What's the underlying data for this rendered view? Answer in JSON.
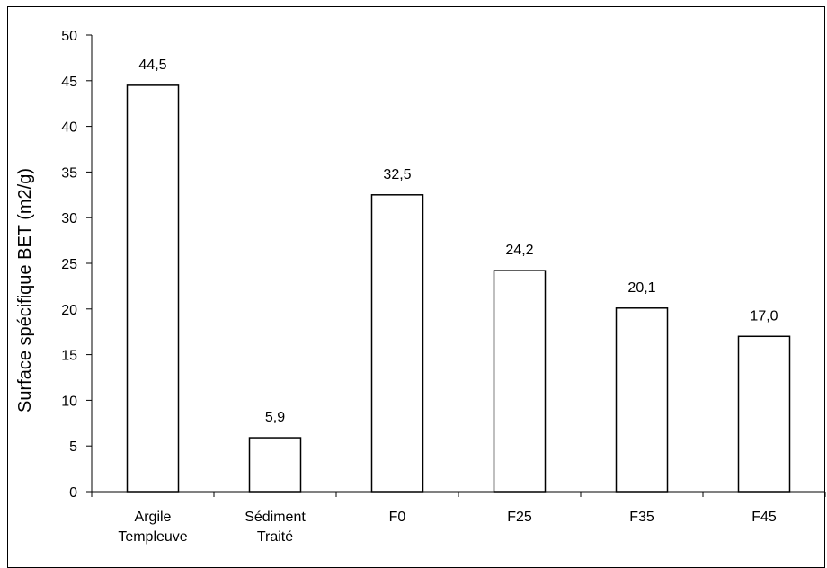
{
  "chart_data": {
    "type": "bar",
    "categories": [
      [
        "Argile",
        "Templeuve"
      ],
      [
        "Sédiment",
        "Traité"
      ],
      [
        "F0"
      ],
      [
        "F25"
      ],
      [
        "F35"
      ],
      [
        "F45"
      ]
    ],
    "values": [
      44.5,
      5.9,
      32.5,
      24.2,
      20.1,
      17.0
    ],
    "data_labels": [
      "44,5",
      "5,9",
      "32,5",
      "24,2",
      "20,1",
      "17,0"
    ],
    "title": "",
    "xlabel": "",
    "ylabel": "Surface spécifique BET (m2/g)",
    "ylim": [
      0,
      50
    ],
    "yticks": [
      0,
      5,
      10,
      15,
      20,
      25,
      30,
      35,
      40,
      45,
      50
    ],
    "grid": false,
    "legend": "none",
    "colors": {
      "bar_fill": "#ffffff",
      "bar_stroke": "#000000",
      "axis": "#000000"
    }
  }
}
